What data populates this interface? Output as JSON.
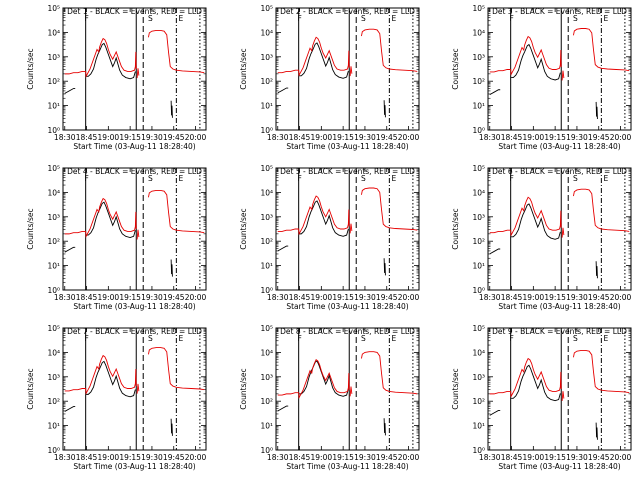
{
  "chart_data": {
    "type": "line",
    "layout": "3x3 grid",
    "shared": {
      "xlabel": "Start Time (03-Aug-11 18:28:40)",
      "ylabel": "Counts/sec",
      "x_unit": "hours (UT, 03-Aug-11)",
      "x_ticks": [
        {
          "value": 18.5,
          "label": "18:30"
        },
        {
          "value": 18.75,
          "label": "18:45"
        },
        {
          "value": 19.0,
          "label": "19:00"
        },
        {
          "value": 19.25,
          "label": "19:15"
        },
        {
          "value": 19.5,
          "label": "19:30"
        },
        {
          "value": 19.75,
          "label": "19:45"
        },
        {
          "value": 20.0,
          "label": "20:00"
        }
      ],
      "xlim": [
        18.48,
        20.12
      ],
      "y_scale": "log",
      "ylim_exponents": [
        0,
        5
      ],
      "y_tick_labels": [
        "10⁰",
        "10¹",
        "10²",
        "10³",
        "10⁴",
        "10⁵"
      ],
      "vertical_markers": [
        {
          "x": 18.74,
          "style": "solid"
        },
        {
          "x": 19.32,
          "style": "solid"
        },
        {
          "x": 19.4,
          "style": "dashed"
        },
        {
          "x": 19.78,
          "style": "dashdot"
        },
        {
          "x": 20.05,
          "style": "dotted"
        }
      ],
      "marker_letters": [
        {
          "x": 18.74,
          "text": "F"
        },
        {
          "x": 19.47,
          "text": "S"
        },
        {
          "x": 19.82,
          "text": "E"
        }
      ],
      "series_colors": {
        "events": "#000000",
        "lld": "#e60000"
      },
      "series_names": [
        "Events (BLACK)",
        "LLD (RED)"
      ]
    },
    "panels": [
      {
        "title": "Det 1 - BLACK = Events, RED = LLD",
        "events_offset": 0,
        "lld_offset": 0,
        "gap_spike": 0.1
      },
      {
        "title": "Det 2 - BLACK = Events, RED = LLD",
        "events_offset": 0.02,
        "lld_offset": 0.05,
        "gap_spike": 0.2
      },
      {
        "title": "Det 3 - BLACK = Events, RED = LLD",
        "events_offset": -0.05,
        "lld_offset": 0.08,
        "gap_spike": -0.5
      },
      {
        "title": "Det 4 - BLACK = Events, RED = LLD",
        "events_offset": 0.05,
        "lld_offset": 0,
        "gap_spike": -0.1
      },
      {
        "title": "Det 5 - BLACK = Events, RED = LLD",
        "events_offset": 0.1,
        "lld_offset": 0.1,
        "gap_spike": 0.4
      },
      {
        "title": "Det 6 - BLACK = Events, RED = LLD",
        "events_offset": -0.02,
        "lld_offset": 0.05,
        "gap_spike": 0
      },
      {
        "title": "Det 7 - BLACK = Events, RED = LLD",
        "events_offset": 0.08,
        "lld_offset": 0.12,
        "gap_spike": 0.3
      },
      {
        "title": "Det 8 - BLACK = Events, RED = LLD",
        "events_offset": 0.1,
        "lld_offset": -0.05,
        "gap_spike": 0.5
      },
      {
        "title": "Det 9 - BLACK = Events, RED = LLD",
        "events_offset": -0.08,
        "lld_offset": 0,
        "gap_spike": -0.3
      }
    ],
    "lld_profile": [
      [
        18.5,
        2.3
      ],
      [
        18.55,
        2.3
      ],
      [
        18.6,
        2.35
      ],
      [
        18.65,
        2.35
      ],
      [
        18.7,
        2.4
      ],
      [
        18.74,
        2.4
      ],
      [
        18.745,
        2.2
      ],
      [
        18.76,
        2.3
      ],
      [
        18.79,
        2.5
      ],
      [
        18.82,
        2.8
      ],
      [
        18.85,
        3.1
      ],
      [
        18.87,
        3.3
      ],
      [
        18.89,
        3.2
      ],
      [
        18.9,
        3.4
      ],
      [
        18.92,
        3.6
      ],
      [
        18.94,
        3.75
      ],
      [
        18.96,
        3.7
      ],
      [
        18.98,
        3.55
      ],
      [
        19.0,
        3.3
      ],
      [
        19.02,
        3.1
      ],
      [
        19.05,
        2.9
      ],
      [
        19.07,
        3.05
      ],
      [
        19.09,
        3.2
      ],
      [
        19.11,
        3.0
      ],
      [
        19.13,
        2.8
      ],
      [
        19.15,
        2.6
      ],
      [
        19.18,
        2.45
      ],
      [
        19.22,
        2.4
      ],
      [
        19.26,
        2.4
      ],
      [
        19.3,
        2.45
      ],
      [
        19.31,
        2.6
      ],
      [
        19.315,
        3.2
      ],
      [
        19.318,
        2.7
      ],
      [
        19.32,
        2.5
      ]
    ],
    "lld_profile_after_gap": [
      [
        19.46,
        3.8
      ],
      [
        19.47,
        3.98
      ],
      [
        19.5,
        4.05
      ],
      [
        19.55,
        4.08
      ],
      [
        19.6,
        4.08
      ],
      [
        19.64,
        4.05
      ],
      [
        19.67,
        3.9
      ],
      [
        19.69,
        3.2
      ],
      [
        19.71,
        2.6
      ],
      [
        19.74,
        2.5
      ],
      [
        19.78,
        2.45
      ],
      [
        19.85,
        2.42
      ],
      [
        19.95,
        2.4
      ],
      [
        20.05,
        2.38
      ],
      [
        20.1,
        2.35
      ]
    ],
    "gap_interval": [
      19.32,
      19.46
    ],
    "gap_segment_lld": [
      [
        19.33,
        2.1
      ],
      [
        19.34,
        2.5
      ],
      [
        19.35,
        2.2
      ]
    ],
    "events_profile": [
      [
        18.5,
        1.5
      ],
      [
        18.55,
        1.6
      ],
      [
        18.6,
        1.7
      ],
      [
        18.62,
        1.7
      ],
      [
        18.745,
        2.2
      ],
      [
        18.77,
        2.2
      ],
      [
        18.8,
        2.3
      ],
      [
        18.83,
        2.5
      ],
      [
        18.86,
        2.9
      ],
      [
        18.88,
        3.1
      ],
      [
        18.9,
        3.25
      ],
      [
        18.93,
        3.5
      ],
      [
        18.95,
        3.55
      ],
      [
        18.97,
        3.4
      ],
      [
        19.0,
        3.1
      ],
      [
        19.03,
        2.8
      ],
      [
        19.05,
        2.6
      ],
      [
        19.07,
        2.75
      ],
      [
        19.09,
        2.95
      ],
      [
        19.11,
        2.7
      ],
      [
        19.13,
        2.45
      ],
      [
        19.16,
        2.25
      ],
      [
        19.2,
        2.15
      ],
      [
        19.25,
        2.1
      ],
      [
        19.29,
        2.15
      ],
      [
        19.31,
        2.4
      ]
    ],
    "events_tail": [
      [
        19.72,
        1.2
      ],
      [
        19.725,
        0.6
      ],
      [
        19.73,
        1.0
      ],
      [
        19.735,
        0.5
      ]
    ]
  }
}
